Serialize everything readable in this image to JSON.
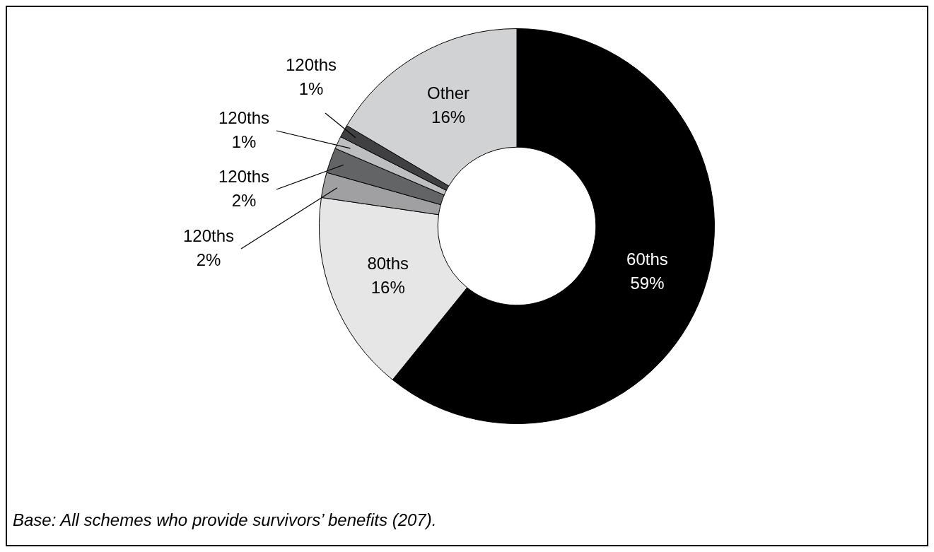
{
  "chart_data": {
    "type": "donut",
    "categories": [
      "60ths",
      "80ths",
      "120ths",
      "120ths",
      "120ths",
      "120ths",
      "Other"
    ],
    "values": [
      59,
      16,
      2,
      2,
      1,
      1,
      16
    ],
    "colors": [
      "#000000",
      "#e6e6e6",
      "#a0a0a2",
      "#636466",
      "#bdbec0",
      "#404042",
      "#d1d2d4"
    ],
    "value_labels": [
      "59%",
      "16%",
      "2%",
      "2%",
      "1%",
      "1%",
      "16%"
    ],
    "annotations": [
      "Base: All schemes who provide survivors’ benefits (207)."
    ]
  }
}
